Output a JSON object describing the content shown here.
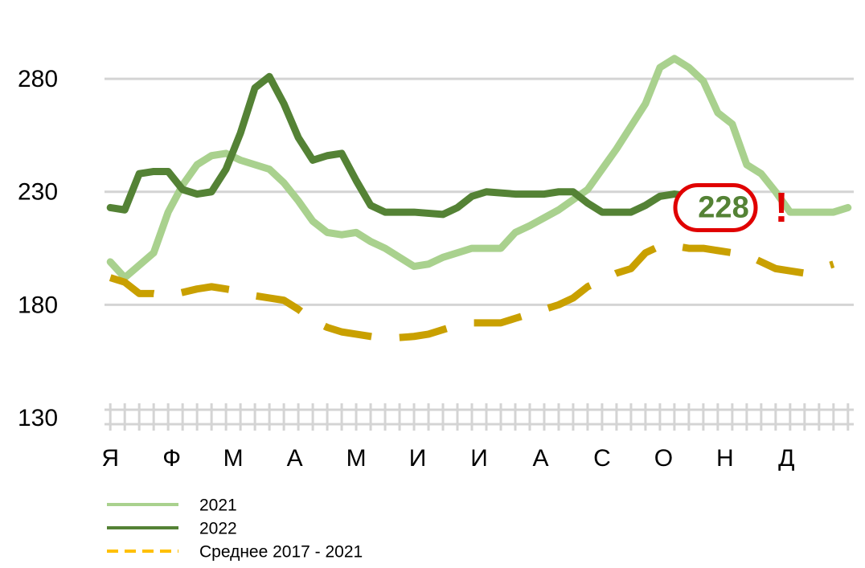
{
  "chart_data": {
    "type": "line",
    "categories": [
      "Я",
      "Ф",
      "М",
      "А",
      "М",
      "И",
      "И",
      "А",
      "С",
      "О",
      "Н",
      "Д"
    ],
    "xlim": [
      0.6,
      52.4
    ],
    "xticks": [
      1,
      2,
      3,
      4,
      5,
      6,
      7,
      8,
      9,
      10,
      11,
      12,
      13,
      14,
      15,
      16,
      17,
      18,
      19,
      20,
      21,
      22,
      23,
      24,
      25,
      26,
      27,
      28,
      29,
      30,
      31,
      32,
      33,
      34,
      35,
      36,
      37,
      38,
      39,
      40,
      41,
      42,
      43,
      44,
      45,
      46,
      47,
      48,
      49,
      50,
      51,
      52
    ],
    "ylim": [
      130,
      290
    ],
    "yticks": [
      130,
      180,
      230,
      280
    ],
    "grid": true,
    "legend": "bottom-left",
    "series": [
      {
        "name": "2021",
        "color": "#a9d18e",
        "dashed": false,
        "x": [
          1,
          2,
          4,
          5,
          6,
          7,
          8,
          9,
          10,
          12,
          13,
          14,
          15,
          16,
          17,
          18,
          19,
          20,
          21,
          22,
          23,
          24,
          25,
          26,
          28,
          29,
          30,
          32,
          34,
          35,
          36,
          38,
          39,
          40,
          41,
          42,
          43,
          44,
          45,
          46,
          47,
          48,
          50,
          51,
          52
        ],
        "values": [
          199,
          192,
          203,
          221,
          233,
          242,
          246,
          247,
          244,
          240,
          234,
          226,
          217,
          212,
          211,
          212,
          208,
          205,
          201,
          197,
          198,
          201,
          203,
          205,
          205,
          212,
          215,
          222,
          231,
          240,
          249,
          269,
          285,
          289,
          285,
          279,
          265,
          260,
          242,
          238,
          230,
          221,
          221,
          221,
          223
        ]
      },
      {
        "name": "2022",
        "color": "#548235",
        "dashed": false,
        "x": [
          1,
          2,
          3,
          4,
          5,
          6,
          7,
          8,
          9,
          10,
          11,
          12,
          13,
          14,
          15,
          16,
          17,
          18,
          19,
          20,
          22,
          24,
          25,
          26,
          27,
          29,
          31,
          32,
          33,
          34,
          35,
          37,
          38,
          39,
          40,
          41
        ],
        "values": [
          223,
          222,
          238,
          239,
          239,
          231,
          229,
          230,
          240,
          256,
          276,
          281,
          269,
          254,
          244,
          246,
          247,
          235,
          224,
          221,
          221,
          220,
          223,
          228,
          230,
          229,
          229,
          230,
          230,
          225,
          221,
          221,
          224,
          228,
          229,
          228
        ]
      },
      {
        "name": "Среднее 2017 - 2021",
        "color": "#c9a000",
        "dashed": true,
        "x": [
          1,
          2,
          3,
          4,
          5,
          7,
          8,
          9,
          10,
          11,
          12,
          13,
          14,
          15,
          16,
          17,
          18,
          19,
          20,
          22,
          23,
          24,
          25,
          26,
          28,
          29,
          30,
          31,
          32,
          33,
          34,
          35,
          36,
          37,
          38,
          39,
          40,
          41,
          42,
          43,
          44,
          45,
          46,
          47,
          48,
          49,
          50,
          51
        ],
        "values": [
          192,
          190,
          185,
          185,
          184,
          187,
          188,
          187,
          186,
          184,
          183,
          182,
          178,
          173,
          170,
          168,
          167,
          166,
          165,
          166,
          167,
          169,
          171,
          172,
          172,
          174,
          176,
          178,
          180,
          183,
          188,
          191,
          194,
          196,
          203,
          206,
          206,
          205,
          205,
          204,
          203,
          202,
          199,
          196,
          195,
          194,
          196,
          198
        ]
      }
    ],
    "annotation_mark": "!"
  }
}
